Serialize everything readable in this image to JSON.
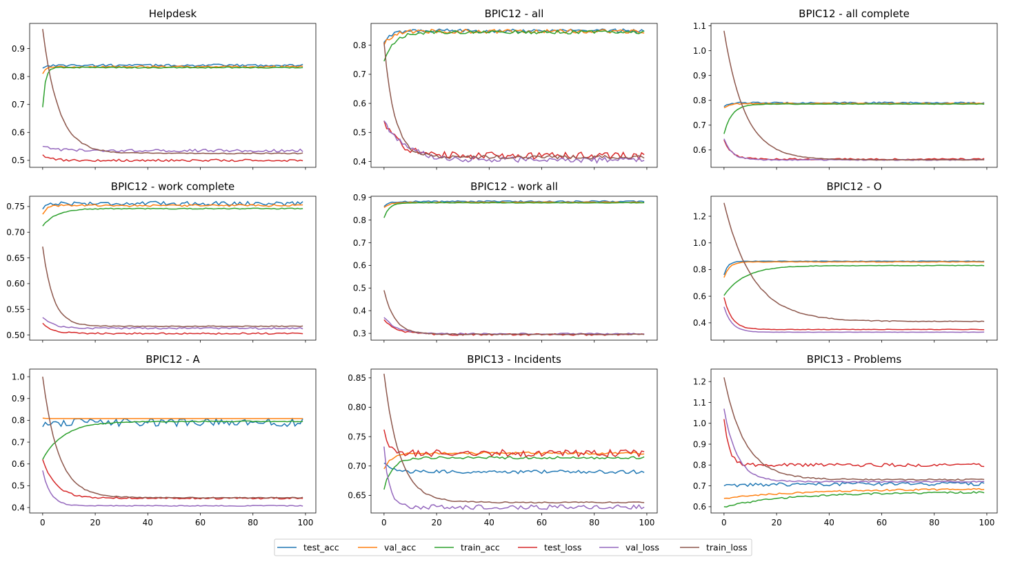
{
  "figure": {
    "x_range": [
      0,
      99
    ],
    "x_ticks": [
      0,
      20,
      40,
      60,
      80,
      100
    ],
    "series_names": [
      "test_acc",
      "val_acc",
      "train_acc",
      "test_loss",
      "val_loss",
      "train_loss"
    ],
    "colors": {
      "test_acc": "#1f77b4",
      "val_acc": "#ff7f0e",
      "train_acc": "#2ca02c",
      "test_loss": "#d62728",
      "val_loss": "#9467bd",
      "train_loss": "#8c564b"
    }
  },
  "legend": {
    "entries": [
      "test_acc",
      "val_acc",
      "train_acc",
      "test_loss",
      "val_loss",
      "train_loss"
    ]
  },
  "chart_data": [
    {
      "type": "line",
      "title": "Helpdesk",
      "xlabel": "",
      "ylabel": "",
      "ylim": [
        0.475,
        0.99
      ],
      "y_ticks": [
        0.5,
        0.6,
        0.7,
        0.8,
        0.9
      ],
      "series": [
        {
          "name": "test_acc",
          "profile": {
            "start": 0.83,
            "plateau": 0.84,
            "tau": 1.0,
            "noise": 0.004,
            "spike": 0.0
          }
        },
        {
          "name": "val_acc",
          "profile": {
            "start": 0.81,
            "plateau": 0.835,
            "tau": 1.5,
            "noise": 0.003,
            "spike": 0.0
          }
        },
        {
          "name": "train_acc",
          "profile": {
            "start": 0.69,
            "plateau": 0.832,
            "tau": 1.0,
            "noise": 0.002,
            "spike": 0.0
          }
        },
        {
          "name": "test_loss",
          "profile": {
            "start": 0.52,
            "plateau": 0.5,
            "tau": 3.0,
            "noise": 0.004,
            "spike": 0.0
          }
        },
        {
          "name": "val_loss",
          "profile": {
            "start": 0.55,
            "plateau": 0.535,
            "tau": 5.0,
            "noise": 0.005,
            "spike": 0.0
          }
        },
        {
          "name": "train_loss",
          "profile": {
            "start": 0.97,
            "plateau": 0.525,
            "tau": 6.0,
            "noise": 0.002,
            "spike": 0.0
          }
        }
      ]
    },
    {
      "type": "line",
      "title": "BPIC12 - all",
      "xlabel": "",
      "ylabel": "",
      "ylim": [
        0.38,
        0.875
      ],
      "y_ticks": [
        0.4,
        0.5,
        0.6,
        0.7,
        0.8
      ],
      "series": [
        {
          "name": "test_acc",
          "profile": {
            "start": 0.81,
            "plateau": 0.85,
            "tau": 3.0,
            "noise": 0.006,
            "spike": 0.0
          }
        },
        {
          "name": "val_acc",
          "profile": {
            "start": 0.8,
            "plateau": 0.848,
            "tau": 3.0,
            "noise": 0.007,
            "spike": 0.0
          }
        },
        {
          "name": "train_acc",
          "profile": {
            "start": 0.745,
            "plateau": 0.845,
            "tau": 4.0,
            "noise": 0.006,
            "spike": 0.0
          }
        },
        {
          "name": "test_loss",
          "profile": {
            "start": 0.54,
            "plateau": 0.42,
            "tau": 6.0,
            "noise": 0.012,
            "spike": 0.0
          }
        },
        {
          "name": "val_loss",
          "profile": {
            "start": 0.54,
            "plateau": 0.405,
            "tau": 8.0,
            "noise": 0.01,
            "spike": 0.0
          }
        },
        {
          "name": "train_loss",
          "profile": {
            "start": 0.81,
            "plateau": 0.415,
            "tau": 4.0,
            "noise": 0.006,
            "spike": 0.0
          }
        }
      ]
    },
    {
      "type": "line",
      "title": "BPIC12 - all complete",
      "xlabel": "",
      "ylabel": "",
      "ylim": [
        0.53,
        1.11
      ],
      "y_ticks": [
        0.6,
        0.7,
        0.8,
        0.9,
        1.0,
        1.1
      ],
      "series": [
        {
          "name": "test_acc",
          "profile": {
            "start": 0.775,
            "plateau": 0.79,
            "tau": 1.5,
            "noise": 0.003,
            "spike": 0.0
          }
        },
        {
          "name": "val_acc",
          "profile": {
            "start": 0.77,
            "plateau": 0.787,
            "tau": 2.0,
            "noise": 0.002,
            "spike": 0.0
          }
        },
        {
          "name": "train_acc",
          "profile": {
            "start": 0.665,
            "plateau": 0.785,
            "tau": 3.0,
            "noise": 0.001,
            "spike": 0.0
          }
        },
        {
          "name": "test_loss",
          "profile": {
            "start": 0.64,
            "plateau": 0.563,
            "tau": 3.0,
            "noise": 0.003,
            "spike": 0.0
          }
        },
        {
          "name": "val_loss",
          "profile": {
            "start": 0.645,
            "plateau": 0.56,
            "tau": 3.0,
            "noise": 0.002,
            "spike": 0.0
          }
        },
        {
          "name": "train_loss",
          "profile": {
            "start": 1.08,
            "plateau": 0.56,
            "tau": 8.0,
            "noise": 0.001,
            "spike": 0.0
          }
        }
      ]
    },
    {
      "type": "line",
      "title": "BPIC12 - work complete",
      "xlabel": "",
      "ylabel": "",
      "ylim": [
        0.49,
        0.77
      ],
      "y_ticks": [
        0.5,
        0.55,
        0.6,
        0.65,
        0.7,
        0.75
      ],
      "series": [
        {
          "name": "test_acc",
          "profile": {
            "start": 0.745,
            "plateau": 0.756,
            "tau": 1.0,
            "noise": 0.004,
            "spike": 0.0
          }
        },
        {
          "name": "val_acc",
          "profile": {
            "start": 0.735,
            "plateau": 0.752,
            "tau": 1.5,
            "noise": 0.002,
            "spike": 0.0
          }
        },
        {
          "name": "train_acc",
          "profile": {
            "start": 0.712,
            "plateau": 0.746,
            "tau": 5.0,
            "noise": 0.001,
            "spike": 0.0
          }
        },
        {
          "name": "test_loss",
          "profile": {
            "start": 0.523,
            "plateau": 0.503,
            "tau": 4.0,
            "noise": 0.0015,
            "spike": 0.0
          }
        },
        {
          "name": "val_loss",
          "profile": {
            "start": 0.534,
            "plateau": 0.513,
            "tau": 4.0,
            "noise": 0.0015,
            "spike": 0.0
          }
        },
        {
          "name": "train_loss",
          "profile": {
            "start": 0.672,
            "plateau": 0.517,
            "tau": 4.0,
            "noise": 0.0008,
            "spike": 0.0
          }
        }
      ]
    },
    {
      "type": "line",
      "title": "BPIC12 - work all",
      "xlabel": "",
      "ylabel": "",
      "ylim": [
        0.27,
        0.905
      ],
      "y_ticks": [
        0.3,
        0.4,
        0.5,
        0.6,
        0.7,
        0.8,
        0.9
      ],
      "series": [
        {
          "name": "test_acc",
          "profile": {
            "start": 0.86,
            "plateau": 0.882,
            "tau": 2.0,
            "noise": 0.003,
            "spike": 0.0
          }
        },
        {
          "name": "val_acc",
          "profile": {
            "start": 0.855,
            "plateau": 0.878,
            "tau": 2.0,
            "noise": 0.002,
            "spike": 0.0
          }
        },
        {
          "name": "train_acc",
          "profile": {
            "start": 0.81,
            "plateau": 0.876,
            "tau": 2.0,
            "noise": 0.001,
            "spike": 0.0
          }
        },
        {
          "name": "test_loss",
          "profile": {
            "start": 0.36,
            "plateau": 0.295,
            "tau": 5.0,
            "noise": 0.004,
            "spike": 0.0
          }
        },
        {
          "name": "val_loss",
          "profile": {
            "start": 0.37,
            "plateau": 0.298,
            "tau": 5.0,
            "noise": 0.003,
            "spike": 0.0
          }
        },
        {
          "name": "train_loss",
          "profile": {
            "start": 0.49,
            "plateau": 0.296,
            "tau": 4.0,
            "noise": 0.002,
            "spike": 0.0
          }
        }
      ]
    },
    {
      "type": "line",
      "title": "BPIC12 - O",
      "xlabel": "",
      "ylabel": "",
      "ylim": [
        0.27,
        1.35
      ],
      "y_ticks": [
        0.4,
        0.6,
        0.8,
        1.0,
        1.2
      ],
      "series": [
        {
          "name": "test_acc",
          "profile": {
            "start": 0.76,
            "plateau": 0.862,
            "tau": 1.5,
            "noise": 0.002,
            "spike": 0.0
          }
        },
        {
          "name": "val_acc",
          "profile": {
            "start": 0.74,
            "plateau": 0.857,
            "tau": 2.0,
            "noise": 0.002,
            "spike": 0.0
          }
        },
        {
          "name": "train_acc",
          "profile": {
            "start": 0.605,
            "plateau": 0.83,
            "tau": 8.0,
            "noise": 0.002,
            "spike": 0.0
          }
        },
        {
          "name": "test_loss",
          "profile": {
            "start": 0.59,
            "plateau": 0.35,
            "tau": 3.0,
            "noise": 0.002,
            "spike": 0.0
          }
        },
        {
          "name": "val_loss",
          "profile": {
            "start": 0.52,
            "plateau": 0.33,
            "tau": 3.0,
            "noise": 0.001,
            "spike": 0.0
          }
        },
        {
          "name": "train_loss",
          "profile": {
            "start": 1.3,
            "plateau": 0.41,
            "tau": 11.0,
            "noise": 0.003,
            "spike": 0.0
          }
        }
      ]
    },
    {
      "type": "line",
      "title": "BPIC12 - A",
      "xlabel": "",
      "ylabel": "",
      "ylim": [
        0.375,
        1.035
      ],
      "y_ticks": [
        0.4,
        0.5,
        0.6,
        0.7,
        0.8,
        0.9,
        1.0
      ],
      "series": [
        {
          "name": "test_acc",
          "profile": {
            "start": 0.77,
            "plateau": 0.79,
            "tau": 1.0,
            "noise": 0.018,
            "spike": 0.0
          }
        },
        {
          "name": "val_acc",
          "profile": {
            "start": 0.81,
            "plateau": 0.808,
            "tau": 1.0,
            "noise": 0.0,
            "spike": 0.0
          }
        },
        {
          "name": "train_acc",
          "profile": {
            "start": 0.62,
            "plateau": 0.795,
            "tau": 8.0,
            "noise": 0.002,
            "spike": 0.0
          }
        },
        {
          "name": "test_loss",
          "profile": {
            "start": 0.62,
            "plateau": 0.443,
            "tau": 5.0,
            "noise": 0.004,
            "spike": 0.0
          }
        },
        {
          "name": "val_loss",
          "profile": {
            "start": 0.57,
            "plateau": 0.408,
            "tau": 3.0,
            "noise": 0.002,
            "spike": 0.0
          }
        },
        {
          "name": "train_loss",
          "profile": {
            "start": 1.0,
            "plateau": 0.445,
            "tau": 6.0,
            "noise": 0.002,
            "spike": 0.0
          }
        }
      ]
    },
    {
      "type": "line",
      "title": "BPIC13 - Incidents",
      "xlabel": "",
      "ylabel": "",
      "ylim": [
        0.62,
        0.865
      ],
      "y_ticks": [
        0.65,
        0.7,
        0.75,
        0.8,
        0.85
      ],
      "series": [
        {
          "name": "test_acc",
          "profile": {
            "start": 0.705,
            "plateau": 0.69,
            "tau": 3.0,
            "noise": 0.003,
            "spike": 0.0
          }
        },
        {
          "name": "val_acc",
          "profile": {
            "start": 0.695,
            "plateau": 0.722,
            "tau": 3.0,
            "noise": 0.002,
            "spike": 0.0
          }
        },
        {
          "name": "train_acc",
          "profile": {
            "start": 0.66,
            "plateau": 0.714,
            "tau": 3.0,
            "noise": 0.002,
            "spike": 0.0
          }
        },
        {
          "name": "test_loss",
          "profile": {
            "start": 0.762,
            "plateau": 0.722,
            "tau": 1.5,
            "noise": 0.006,
            "spike": 0.0
          }
        },
        {
          "name": "val_loss",
          "profile": {
            "start": 0.733,
            "plateau": 0.63,
            "tau": 2.0,
            "noise": 0.004,
            "spike": 0.0
          }
        },
        {
          "name": "train_loss",
          "profile": {
            "start": 0.857,
            "plateau": 0.638,
            "tau": 6.0,
            "noise": 0.001,
            "spike": 0.0
          }
        }
      ]
    },
    {
      "type": "line",
      "title": "BPIC13 - Problems",
      "xlabel": "",
      "ylabel": "",
      "ylim": [
        0.57,
        1.26
      ],
      "y_ticks": [
        0.6,
        0.7,
        0.8,
        0.9,
        1.0,
        1.1,
        1.2
      ],
      "series": [
        {
          "name": "test_acc",
          "profile": {
            "start": 0.7,
            "plateau": 0.71,
            "tau": 20.0,
            "noise": 0.008,
            "spike": 0.0
          }
        },
        {
          "name": "val_acc",
          "profile": {
            "start": 0.64,
            "plateau": 0.685,
            "tau": 30.0,
            "noise": 0.004,
            "spike": 0.0
          }
        },
        {
          "name": "train_acc",
          "profile": {
            "start": 0.6,
            "plateau": 0.67,
            "tau": 25.0,
            "noise": 0.004,
            "spike": 0.0
          }
        },
        {
          "name": "test_loss",
          "profile": {
            "start": 1.02,
            "plateau": 0.8,
            "tau": 2.0,
            "noise": 0.008,
            "spike": 0.0
          }
        },
        {
          "name": "val_loss",
          "profile": {
            "start": 1.07,
            "plateau": 0.72,
            "tau": 5.0,
            "noise": 0.003,
            "spike": 0.0
          }
        },
        {
          "name": "train_loss",
          "profile": {
            "start": 1.22,
            "plateau": 0.73,
            "tau": 8.0,
            "noise": 0.003,
            "spike": 0.0
          }
        }
      ]
    }
  ]
}
